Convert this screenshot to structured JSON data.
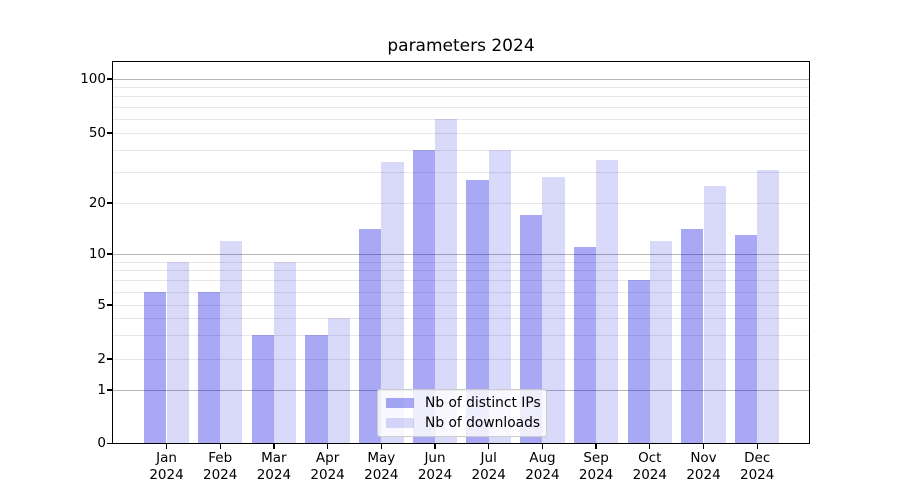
{
  "chart_data": {
    "type": "bar",
    "title": "parameters 2024",
    "categories": [
      "Jan",
      "Feb",
      "Mar",
      "Apr",
      "May",
      "Jun",
      "Jul",
      "Aug",
      "Sep",
      "Oct",
      "Nov",
      "Dec"
    ],
    "x_tick_year": "2024",
    "series": [
      {
        "name": "Nb of distinct IPs",
        "color": "rgba(0,0,222,0.34)",
        "values": [
          6,
          6,
          3,
          3,
          14,
          40,
          27,
          17,
          11,
          7,
          14,
          13
        ]
      },
      {
        "name": "Nb of downloads",
        "color": "rgba(0,0,222,0.15)",
        "values": [
          9,
          12,
          9,
          4,
          34,
          60,
          40,
          28,
          35,
          12,
          25,
          31
        ]
      }
    ],
    "xlabel": "",
    "ylabel": "",
    "yscale": "symlog",
    "ylim": [
      0,
      125
    ],
    "y_ticks": [
      0,
      1,
      2,
      5,
      10,
      20,
      50,
      100
    ],
    "minor_gridlines": [
      2,
      3,
      4,
      5,
      6,
      7,
      8,
      9,
      20,
      30,
      40,
      50,
      60,
      70,
      80,
      90
    ],
    "major_gridlines": [
      1,
      10,
      100
    ],
    "grid": true,
    "legend_position": "lower center inside",
    "colors": {
      "major_grid": "#b6b6b6",
      "minor_grid": "#e7e7e7",
      "spine": "#000000"
    }
  }
}
